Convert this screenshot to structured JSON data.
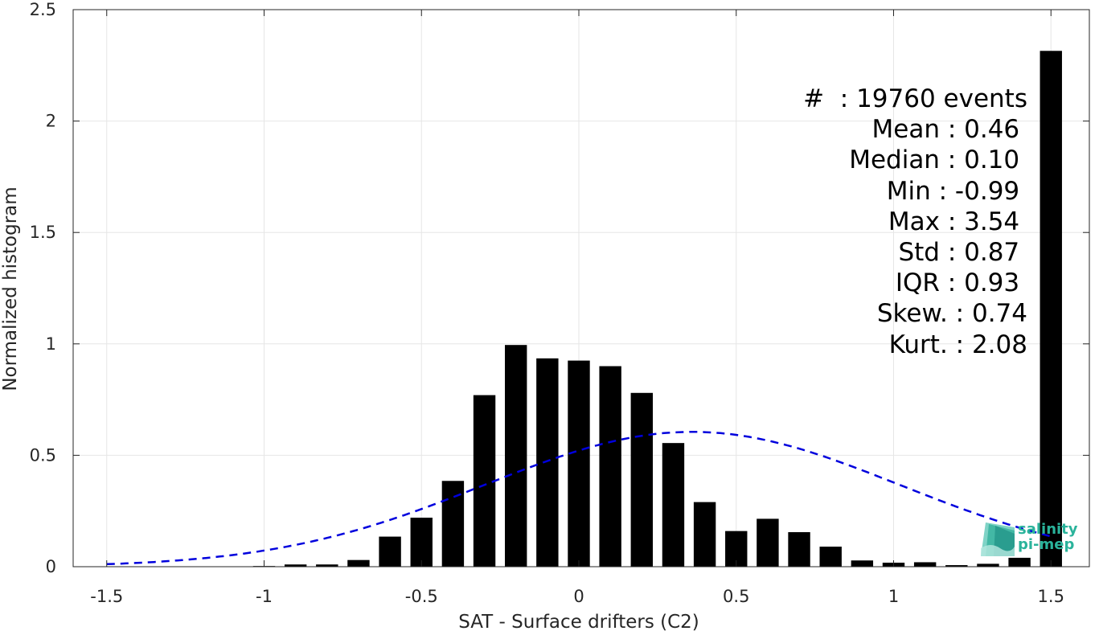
{
  "chart_data": {
    "type": "bar",
    "xlabel": "SAT - Surface drifters (C2)",
    "ylabel": "Normalized histogram",
    "xlim": [
      -1.5,
      1.5
    ],
    "ylim": [
      0,
      2.5
    ],
    "xticks": [
      "-1.5",
      "-1",
      "-0.5",
      "0",
      "0.5",
      "1",
      "1.5"
    ],
    "xtick_values": [
      -1.5,
      -1,
      -0.5,
      0,
      0.5,
      1,
      1.5
    ],
    "yticks": [
      "0",
      "0.5",
      "1",
      "1.5",
      "2",
      "2.5"
    ],
    "ytick_values": [
      0,
      0.5,
      1,
      1.5,
      2,
      2.5
    ],
    "grid": true,
    "bar_color": "#000000",
    "bin_width": 0.1,
    "bins": [
      -1.0,
      -0.9,
      -0.8,
      -0.7,
      -0.6,
      -0.5,
      -0.4,
      -0.3,
      -0.2,
      -0.1,
      0.0,
      0.1,
      0.2,
      0.3,
      0.4,
      0.5,
      0.6,
      0.7,
      0.8,
      0.9,
      1.0,
      1.1,
      1.2,
      1.3,
      1.4,
      1.5
    ],
    "values": [
      0.003,
      0.01,
      0.01,
      0.03,
      0.135,
      0.22,
      0.385,
      0.77,
      0.995,
      0.935,
      0.925,
      0.9,
      0.78,
      0.555,
      0.29,
      0.16,
      0.215,
      0.155,
      0.09,
      0.028,
      0.018,
      0.02,
      0.007,
      0.013,
      0.04,
      2.315
    ],
    "fit_curve": {
      "style": "dashed",
      "color": "#0000dd",
      "mean": 0.36,
      "std": 0.66,
      "amplitude": 0.605,
      "x_range": [
        -1.5,
        1.5
      ]
    },
    "stats": [
      {
        "label": "#  : 19760 events"
      },
      {
        "label": "Mean : 0.46 "
      },
      {
        "label": "Median : 0.10 "
      },
      {
        "label": "Min : -0.99 "
      },
      {
        "label": "Max : 3.54 "
      },
      {
        "label": "Std : 0.87 "
      },
      {
        "label": "IQR : 0.93 "
      },
      {
        "label": "Skew. : 0.74"
      },
      {
        "label": "Kurt. : 2.08"
      }
    ]
  },
  "logo": {
    "line1": "salinity",
    "line2": "pi-mep",
    "color": "#2ab39b"
  }
}
